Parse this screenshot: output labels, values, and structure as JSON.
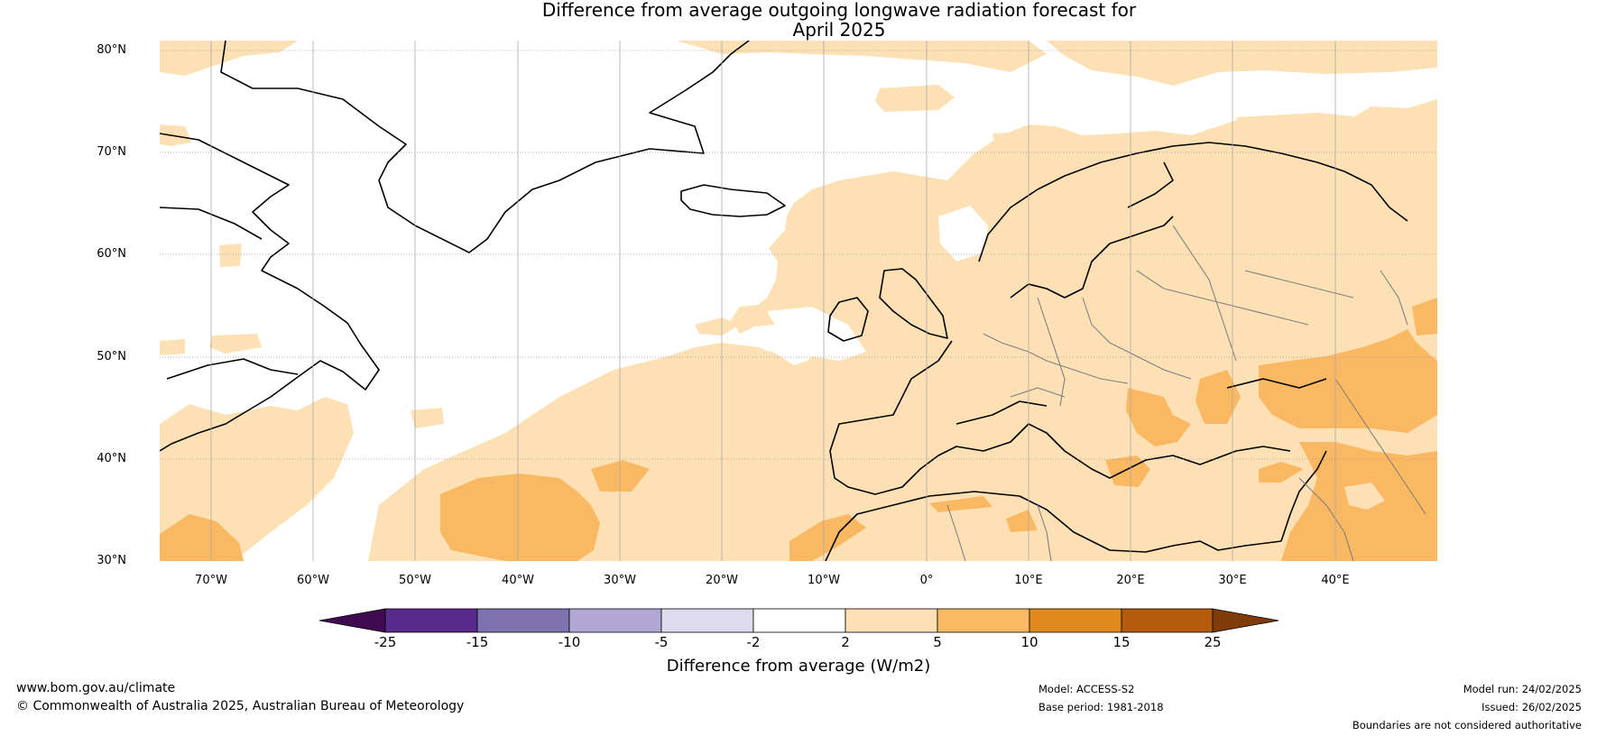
{
  "title": {
    "line1": "Difference from average outgoing longwave radiation forecast for",
    "line2": "April 2025"
  },
  "map": {
    "lat_labels": [
      "80°N",
      "70°N",
      "60°N",
      "50°N",
      "40°N",
      "30°N"
    ],
    "lon_labels": [
      "70°W",
      "60°W",
      "50°W",
      "40°W",
      "30°W",
      "20°W",
      "10°W",
      "0°",
      "10°E",
      "20°E",
      "30°E",
      "40°E"
    ],
    "extent": {
      "lon": [
        -75,
        50
      ],
      "lat": [
        30,
        81
      ]
    },
    "colors": {
      "ocean_neutral": "#ffffff",
      "light_positive": "#fde0b4",
      "mid_positive": "#fbb862",
      "coast": "#000000",
      "border": "#808080",
      "grid": "#999999"
    }
  },
  "colorbar": {
    "ticks": [
      "-25",
      "-15",
      "-10",
      "-5",
      "-2",
      "2",
      "5",
      "10",
      "15",
      "25"
    ],
    "colors": [
      "#3f0a52",
      "#572a8c",
      "#7e72b0",
      "#b1a9d4",
      "#dddbed",
      "#ffffff",
      "#fde0b4",
      "#fbb862",
      "#e08a1c",
      "#b45c0c",
      "#7f3b08"
    ],
    "label": "Difference from average (W/m2)"
  },
  "footer": {
    "website": "www.bom.gov.au/climate",
    "copyright": "© Commonwealth of Australia 2025, Australian Bureau of Meteorology",
    "model": "Model: ACCESS-S2",
    "base_period": "Base period: 1981-2018",
    "model_run": "Model run: 24/02/2025",
    "issued": "Issued: 26/02/2025",
    "disclaimer": "Boundaries are not considered authoritative"
  }
}
